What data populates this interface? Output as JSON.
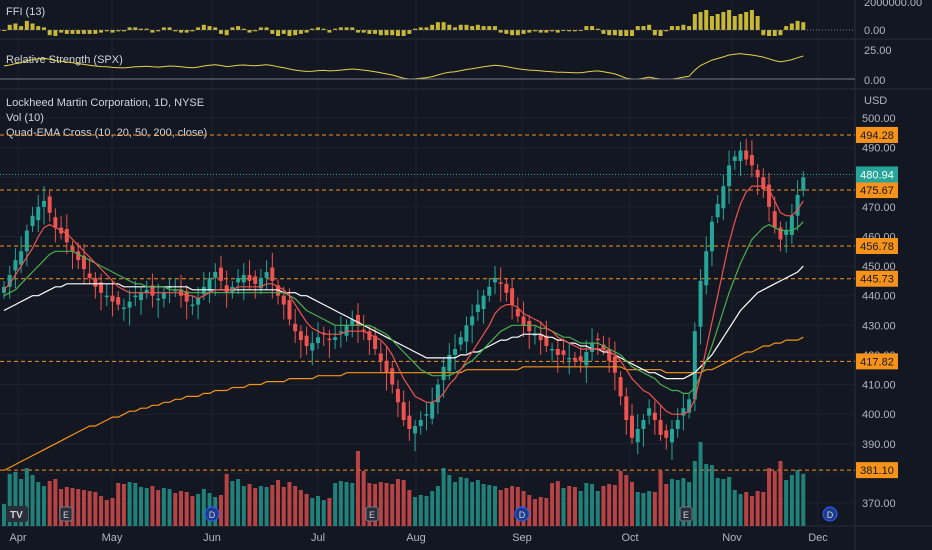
{
  "colors": {
    "background": "#131722",
    "grid": "#1e222d",
    "up": "#26a69a",
    "down": "#ef5350",
    "ema10": "#ef5350",
    "ema20": "#4caf50",
    "ema50": "#ffffff",
    "ema200": "#f7931a",
    "level_line": "#f7931a",
    "level_badge": "#f7931a",
    "last_price_badge": "#26a69a",
    "ffi": "#c8b834",
    "rs_line": "#e6d24a"
  },
  "panes": {
    "ffi": {
      "label": "FFI (13)",
      "ticks": [
        "2000000.00",
        "0.00"
      ]
    },
    "rs": {
      "label": "Relative Strength (SPX)",
      "ticks": [
        "25.00",
        "0.00"
      ]
    },
    "main": {
      "title": "Lockheed Martin Corporation, 1D, NYSE",
      "vol_label": "Vol (10)",
      "ema_label": "Quad-EMA Cross (10, 20, 50, 200, close)",
      "unit": "USD"
    }
  },
  "chart_data": {
    "type": "candlestick",
    "symbol": "Lockheed Martin Corporation",
    "timeframe": "1D",
    "exchange": "NYSE",
    "y_ticks": [
      500,
      490,
      480,
      470,
      460,
      450,
      440,
      430,
      420,
      410,
      400,
      390,
      380,
      370
    ],
    "y_unit": "USD",
    "x_labels": [
      "Apr",
      "May",
      "Jun",
      "Jul",
      "Aug",
      "Sep",
      "Oct",
      "Nov",
      "Dec"
    ],
    "last_price": 480.94,
    "levels": [
      494.28,
      475.67,
      456.78,
      445.73,
      417.82,
      381.1
    ],
    "close_series": [
      443,
      447,
      452,
      455,
      462,
      467,
      470,
      472,
      468,
      463,
      461,
      458,
      455,
      452,
      449,
      446,
      443,
      441,
      440,
      438,
      437,
      436,
      438,
      440,
      441,
      442,
      440,
      439,
      441,
      443,
      442,
      440,
      438,
      437,
      439,
      443,
      446,
      448,
      445,
      441,
      443,
      446,
      447,
      445,
      444,
      446,
      448,
      445,
      440,
      437,
      432,
      428,
      425,
      423,
      424,
      426,
      427,
      425,
      426,
      428,
      430,
      432,
      430,
      428,
      425,
      422,
      418,
      414,
      410,
      404,
      398,
      395,
      396,
      398,
      400,
      404,
      410,
      416,
      420,
      422,
      426,
      430,
      433,
      437,
      440,
      443,
      446,
      444,
      441,
      437,
      433,
      430,
      428,
      427,
      425,
      423,
      422,
      420,
      420,
      419,
      418,
      418,
      421,
      424,
      425,
      422,
      418,
      414,
      406,
      398,
      392,
      395,
      398,
      402,
      398,
      393,
      392,
      395,
      398,
      402,
      405,
      428,
      445,
      455,
      465,
      471,
      477,
      484,
      487,
      489,
      486,
      484,
      480,
      476,
      470,
      463,
      459,
      462,
      467,
      474,
      480
    ],
    "ema10": [
      442,
      444,
      447,
      450,
      453,
      456,
      460,
      463,
      464,
      463,
      462,
      461,
      459,
      457,
      455,
      453,
      451,
      449,
      447,
      445,
      443,
      442,
      441,
      441,
      441,
      441,
      441,
      441,
      441,
      441,
      441,
      441,
      440,
      440,
      439,
      440,
      441,
      442,
      442,
      442,
      442,
      443,
      443,
      443,
      443,
      443,
      444,
      444,
      443,
      442,
      440,
      437,
      434,
      431,
      429,
      428,
      427,
      427,
      427,
      427,
      428,
      428,
      428,
      428,
      427,
      426,
      425,
      423,
      420,
      416,
      412,
      409,
      406,
      405,
      404,
      404,
      405,
      407,
      410,
      412,
      415,
      418,
      421,
      424,
      427,
      430,
      434,
      436,
      437,
      437,
      436,
      434,
      433,
      432,
      431,
      429,
      428,
      426,
      425,
      424,
      423,
      422,
      422,
      422,
      422,
      422,
      421,
      420,
      418,
      415,
      412,
      410,
      408,
      407,
      405,
      403,
      401,
      400,
      400,
      400,
      401,
      405,
      413,
      422,
      431,
      440,
      449,
      458,
      465,
      471,
      475,
      477,
      477,
      477,
      476,
      472,
      468,
      467,
      467,
      469,
      472
    ],
    "ema20": [
      440,
      441,
      442,
      444,
      446,
      448,
      450,
      452,
      454,
      455,
      455,
      455,
      455,
      454,
      453,
      452,
      451,
      450,
      449,
      448,
      447,
      446,
      445,
      444,
      444,
      443,
      443,
      443,
      443,
      442,
      442,
      442,
      441,
      441,
      441,
      441,
      441,
      441,
      441,
      441,
      441,
      441,
      441,
      441,
      441,
      441,
      441,
      441,
      441,
      441,
      440,
      439,
      437,
      435,
      434,
      433,
      432,
      431,
      430,
      430,
      430,
      430,
      430,
      430,
      430,
      429,
      428,
      427,
      425,
      423,
      421,
      419,
      417,
      415,
      414,
      413,
      413,
      413,
      413,
      414,
      415,
      417,
      418,
      420,
      422,
      424,
      426,
      428,
      429,
      430,
      430,
      430,
      430,
      430,
      429,
      429,
      428,
      427,
      426,
      426,
      425,
      424,
      424,
      424,
      424,
      423,
      422,
      421,
      420,
      418,
      416,
      415,
      414,
      413,
      412,
      410,
      409,
      408,
      408,
      407,
      407,
      409,
      413,
      418,
      423,
      429,
      435,
      441,
      446,
      451,
      455,
      459,
      461,
      463,
      464,
      463,
      462,
      462,
      462,
      463,
      465
    ],
    "ema50": [
      435,
      436,
      437,
      438,
      439,
      440,
      440,
      441,
      442,
      443,
      443,
      444,
      444,
      444,
      444,
      444,
      444,
      444,
      444,
      444,
      444,
      443,
      443,
      443,
      443,
      443,
      443,
      443,
      443,
      443,
      443,
      443,
      443,
      442,
      442,
      442,
      442,
      442,
      442,
      442,
      442,
      442,
      442,
      442,
      442,
      442,
      442,
      442,
      442,
      441,
      441,
      441,
      440,
      440,
      439,
      438,
      437,
      436,
      435,
      434,
      433,
      432,
      431,
      430,
      429,
      428,
      427,
      426,
      425,
      424,
      423,
      422,
      421,
      420,
      419,
      419,
      419,
      419,
      419,
      419,
      420,
      420,
      421,
      421,
      422,
      423,
      424,
      425,
      425,
      426,
      426,
      427,
      427,
      427,
      427,
      426,
      426,
      425,
      425,
      424,
      424,
      423,
      423,
      422,
      422,
      421,
      421,
      420,
      419,
      418,
      417,
      416,
      415,
      414,
      414,
      413,
      412,
      412,
      412,
      412,
      413,
      414,
      416,
      418,
      420,
      423,
      426,
      429,
      432,
      435,
      437,
      439,
      441,
      442,
      443,
      444,
      445,
      446,
      447,
      448,
      450
    ],
    "ema200": [
      381,
      382,
      383,
      384,
      385,
      386,
      387,
      388,
      389,
      390,
      391,
      392,
      393,
      394,
      395,
      396,
      396,
      397,
      398,
      399,
      399,
      400,
      401,
      401,
      402,
      402,
      403,
      403,
      404,
      404,
      405,
      405,
      406,
      406,
      406,
      407,
      407,
      408,
      408,
      408,
      409,
      409,
      409,
      410,
      410,
      410,
      411,
      411,
      411,
      411,
      412,
      412,
      412,
      412,
      412,
      413,
      413,
      413,
      413,
      413,
      414,
      414,
      414,
      414,
      414,
      414,
      414,
      414,
      414,
      414,
      414,
      414,
      414,
      414,
      414,
      414,
      414,
      414,
      414,
      414,
      414,
      415,
      415,
      415,
      415,
      415,
      415,
      415,
      415,
      415,
      415,
      416,
      416,
      416,
      416,
      416,
      416,
      416,
      416,
      416,
      416,
      416,
      416,
      416,
      416,
      416,
      416,
      416,
      416,
      415,
      415,
      415,
      415,
      415,
      415,
      415,
      414,
      414,
      414,
      414,
      414,
      414,
      414,
      415,
      415,
      416,
      417,
      418,
      419,
      420,
      421,
      421,
      422,
      423,
      423,
      424,
      424,
      425,
      425,
      425,
      426
    ],
    "vol_mode": "bars",
    "ffi_mode": "histogram",
    "rs_mode": "line"
  },
  "badges": {
    "tv_logo_text": "TV"
  }
}
